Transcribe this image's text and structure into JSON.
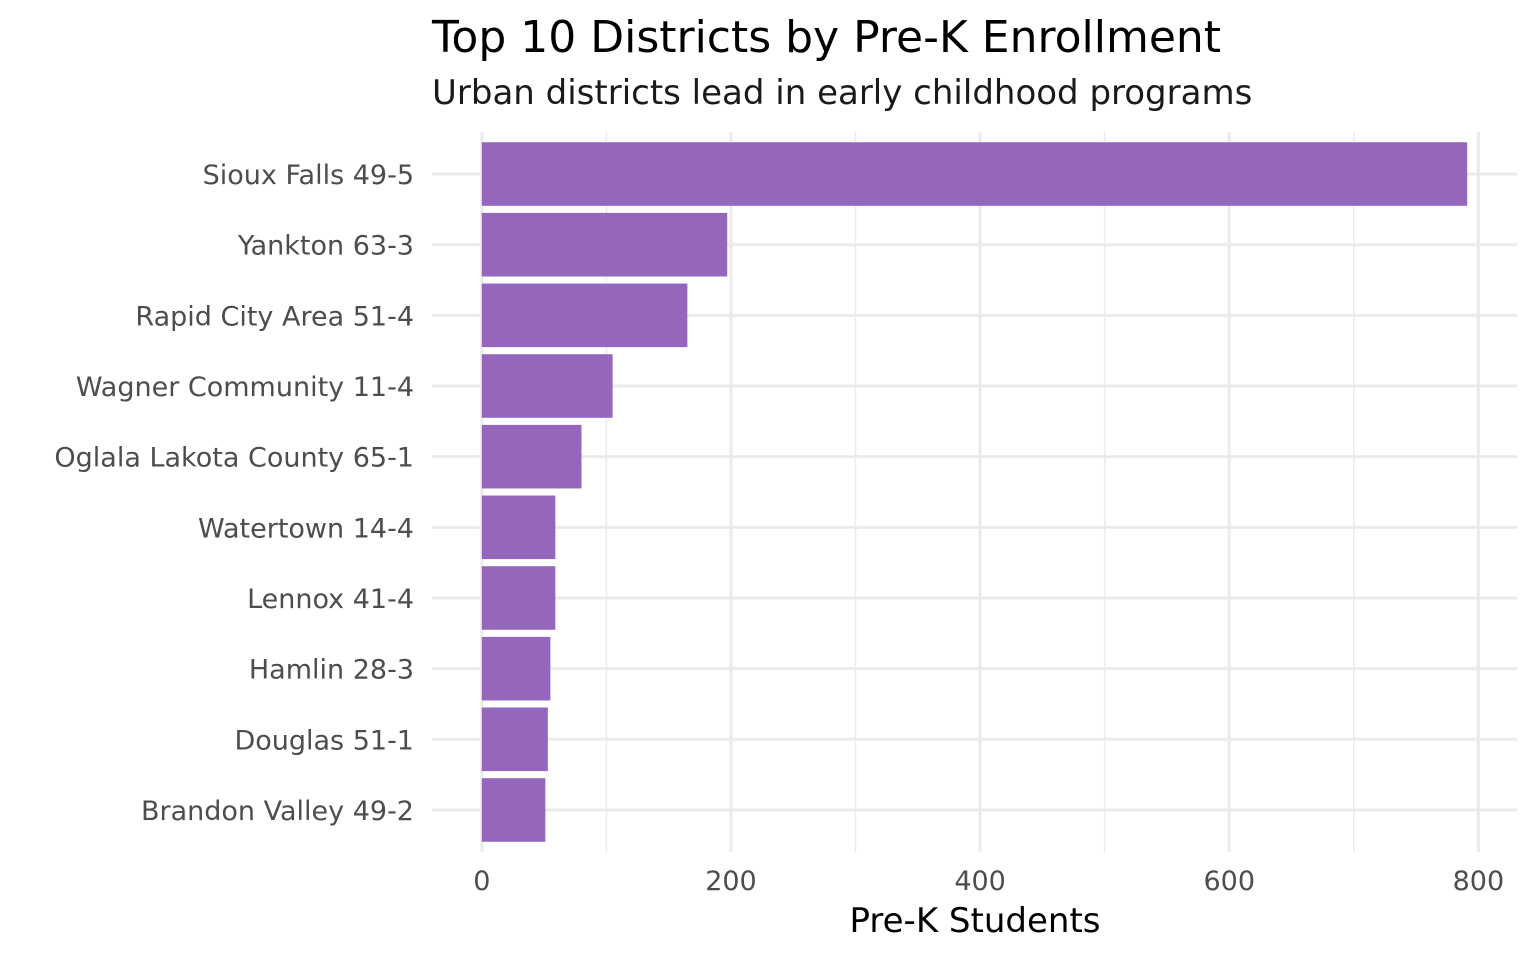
{
  "chart_data": {
    "type": "bar",
    "orientation": "horizontal",
    "title": "Top 10 Districts by Pre-K Enrollment",
    "subtitle": "Urban districts lead in early childhood programs",
    "x_label": "Pre-K Students",
    "categories": [
      "Sioux Falls 49-5",
      "Yankton 63-3",
      "Rapid City Area 51-4",
      "Wagner Community 11-4",
      "Oglala Lakota County 65-1",
      "Watertown 14-4",
      "Lennox 41-4",
      "Hamlin 28-3",
      "Douglas 51-1",
      "Brandon Valley 49-2"
    ],
    "values": [
      791,
      197,
      165,
      105,
      80,
      59,
      59,
      55,
      53,
      51
    ],
    "color": "#9467bd",
    "xlim": [
      -40,
      831
    ],
    "xticks": [
      0,
      200,
      400,
      600,
      800
    ],
    "grid": true
  }
}
